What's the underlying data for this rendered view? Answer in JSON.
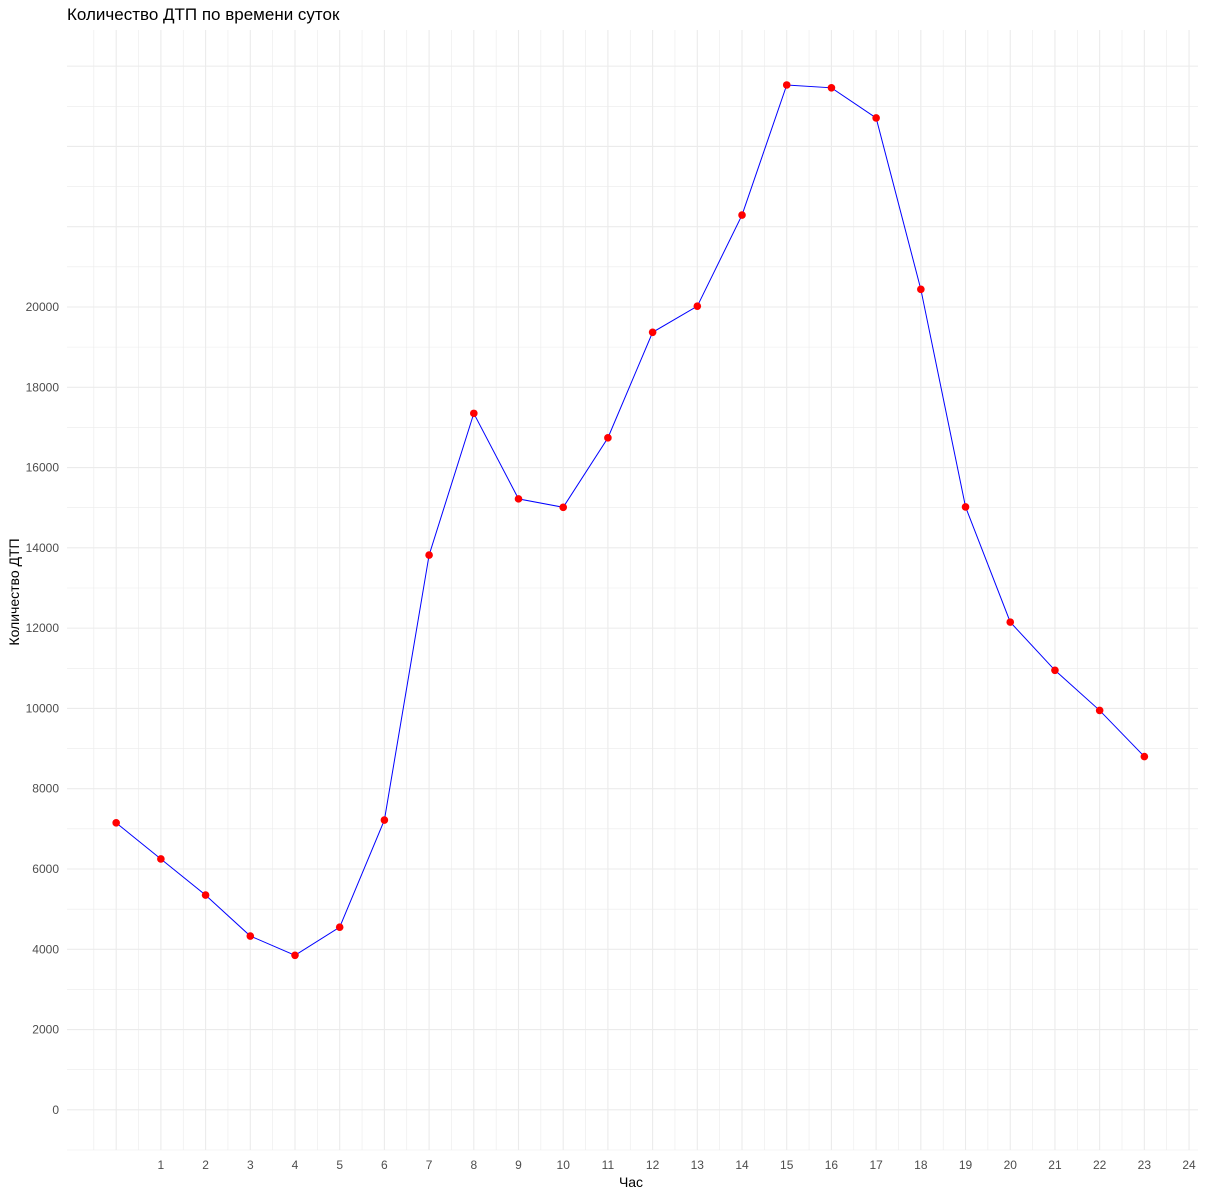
{
  "chart_data": {
    "type": "line",
    "title": "Количество ДТП по времени суток",
    "xlabel": "Час",
    "ylabel": "Количество ДТП",
    "x_ticks": [
      1,
      2,
      3,
      4,
      5,
      6,
      7,
      8,
      9,
      10,
      11,
      12,
      13,
      14,
      15,
      16,
      17,
      18,
      19,
      20,
      21,
      22,
      23,
      24
    ],
    "y_ticks": [
      0,
      2000,
      4000,
      6000,
      8000,
      10000,
      12000,
      14000,
      16000,
      18000,
      20000
    ],
    "xlim": [
      -1.1,
      24.2
    ],
    "ylim": [
      -1000,
      26900
    ],
    "grid": true,
    "line_color": "#0000ff",
    "point_color": "#ff0000",
    "series": [
      {
        "x": [
          0,
          1,
          2,
          3,
          4,
          5,
          6,
          7,
          8,
          9,
          10,
          11,
          12,
          13,
          14,
          15,
          16,
          17,
          18,
          19,
          20,
          21,
          22,
          23
        ],
        "values": [
          7150,
          6250,
          5350,
          4330,
          3850,
          4550,
          7220,
          13820,
          17350,
          15220,
          15010,
          16740,
          19370,
          20020,
          22290,
          25530,
          25460,
          24710,
          20440,
          15020,
          12150,
          10950,
          9950,
          8800
        ]
      }
    ]
  }
}
